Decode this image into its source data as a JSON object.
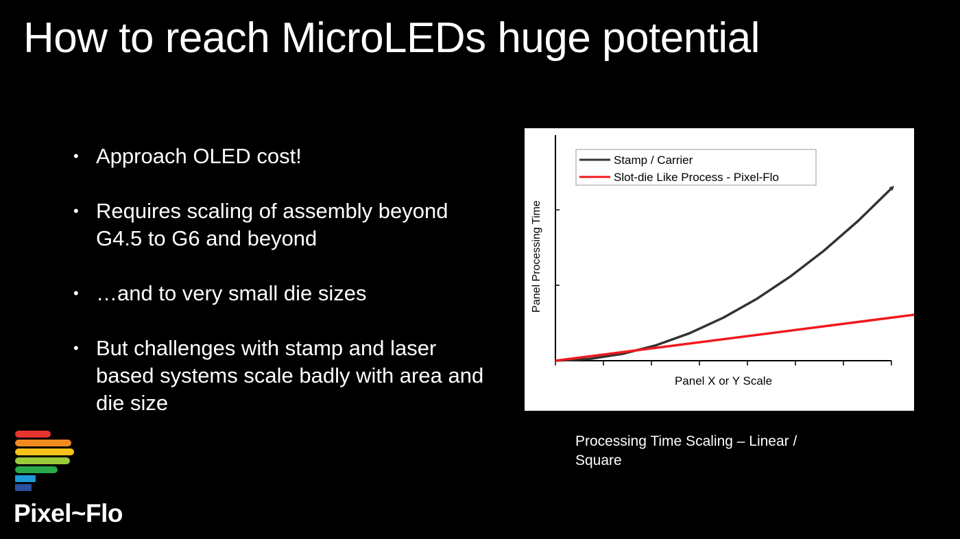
{
  "slide": {
    "title": "How to reach MicroLEDs huge potential"
  },
  "bullets": [
    {
      "text": "Approach OLED cost!"
    },
    {
      "text": "Requires scaling of assembly beyond G4.5 to G6 and beyond"
    },
    {
      "text": "…and to very small die sizes"
    },
    {
      "text": "But challenges with stamp and laser based systems scale badly with area and die size"
    }
  ],
  "bullet_symbol": "•",
  "caption": "Processing Time Scaling – Linear / Square",
  "logo": {
    "text": "Pixel~Flo",
    "stripe_colors": [
      "#e8342e",
      "#f28b22",
      "#f6c21b",
      "#9acb3b",
      "#2aa84a",
      "#1d9ad6",
      "#2b4fa3"
    ]
  },
  "chart_data": {
    "type": "line",
    "title": "",
    "xlabel": "Panel X or Y Scale",
    "ylabel": "Panel Processing Time",
    "xlim": [
      0,
      10
    ],
    "ylim": [
      0,
      10
    ],
    "show_tick_labels": false,
    "legend_position": "top-left",
    "series": [
      {
        "name": "Stamp / Carrier",
        "color": "#333333",
        "x": [
          0,
          1,
          2,
          3,
          4,
          5,
          6,
          7,
          8,
          9,
          10
        ],
        "y": [
          0,
          0.08,
          0.32,
          0.72,
          1.28,
          2.0,
          2.88,
          3.92,
          5.12,
          6.48,
          8.0
        ]
      },
      {
        "name": "Slot-die Like Process - Pixel-Flo",
        "color": "#f0191d",
        "x": [
          0,
          11.5
        ],
        "y": [
          0,
          2.3
        ]
      }
    ],
    "colors": {
      "frame": "#ffffff",
      "axis": "#000000"
    }
  }
}
